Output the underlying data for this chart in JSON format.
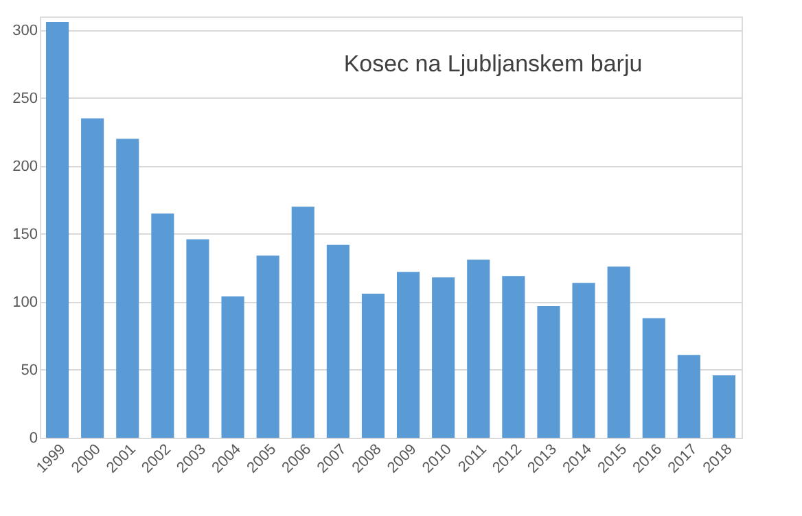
{
  "chart_data": {
    "type": "bar",
    "title": "Kosec na Ljubljanskem barju",
    "categories": [
      "1999",
      "2000",
      "2001",
      "2002",
      "2003",
      "2004",
      "2005",
      "2006",
      "2007",
      "2008",
      "2009",
      "2010",
      "2011",
      "2012",
      "2013",
      "2014",
      "2015",
      "2016",
      "2017",
      "2018"
    ],
    "values": [
      306,
      235,
      220,
      165,
      146,
      104,
      134,
      170,
      142,
      106,
      122,
      118,
      131,
      119,
      97,
      114,
      126,
      88,
      61,
      46
    ],
    "color": "#5b9bd5",
    "ylim": [
      0,
      310
    ],
    "yticks": [
      0,
      50,
      100,
      150,
      200,
      250,
      300
    ],
    "grid": "y"
  }
}
